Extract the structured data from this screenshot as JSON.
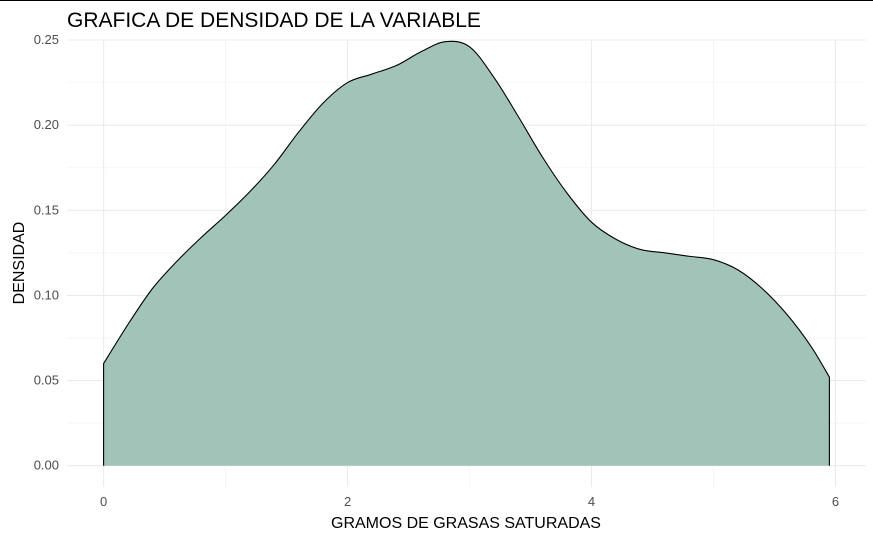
{
  "chart_data": {
    "type": "area",
    "title": "GRAFICA DE DENSIDAD DE LA VARIABLE",
    "xlabel": "GRAMOS DE GRASAS SATURADAS",
    "ylabel": "DENSIDAD",
    "xlim": [
      -0.3,
      6.25
    ],
    "ylim": [
      -0.0125,
      0.25
    ],
    "x_ticks": [
      "0",
      "2",
      "4",
      "6"
    ],
    "y_ticks": [
      "0.00",
      "0.05",
      "0.10",
      "0.15",
      "0.20",
      "0.25"
    ],
    "grid": true,
    "fill_color": "#a2c4b8",
    "line_color": "#000000",
    "series": [
      {
        "x": [
          0.0,
          0.2,
          0.4,
          0.6,
          0.8,
          1.0,
          1.2,
          1.4,
          1.6,
          1.8,
          2.0,
          2.2,
          2.4,
          2.6,
          2.8,
          3.0,
          3.2,
          3.4,
          3.6,
          3.8,
          4.0,
          4.2,
          4.4,
          4.6,
          4.8,
          5.0,
          5.2,
          5.4,
          5.6,
          5.8,
          5.95
        ],
        "y": [
          0.06,
          0.083,
          0.104,
          0.12,
          0.134,
          0.147,
          0.161,
          0.177,
          0.196,
          0.213,
          0.225,
          0.23,
          0.235,
          0.243,
          0.249,
          0.246,
          0.228,
          0.205,
          0.181,
          0.16,
          0.143,
          0.133,
          0.127,
          0.125,
          0.123,
          0.121,
          0.115,
          0.104,
          0.089,
          0.07,
          0.052
        ]
      }
    ]
  }
}
